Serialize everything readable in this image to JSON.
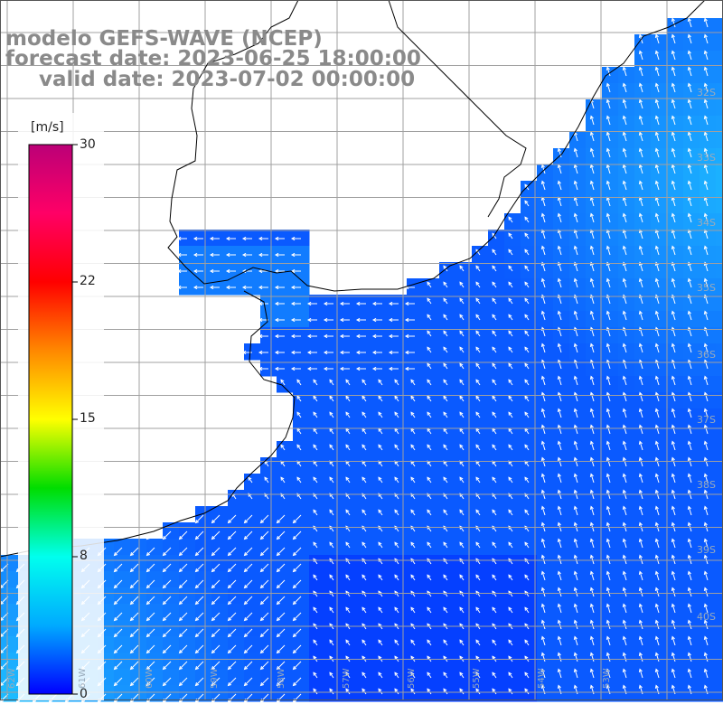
{
  "title": {
    "line1": "modelo GEFS-WAVE (NCEP)",
    "line2": "forecast date: 2023-06-25 18:00:00",
    "line3": "valid date: 2023-07-02 00:00:00"
  },
  "colorbar": {
    "unit": "[m/s]",
    "ticks": [
      "30",
      "22",
      "15",
      "8",
      "0"
    ],
    "stops": [
      "#0000ff",
      "#00aaff",
      "#00ffee",
      "#00dd00",
      "#ffff00",
      "#ff8800",
      "#ff0000",
      "#ff0066",
      "#bb0077"
    ]
  },
  "map": {
    "variable": "wind speed",
    "lat_labels": [
      "32S",
      "33S",
      "34S",
      "35S",
      "36S",
      "37S",
      "38S",
      "39S",
      "40S"
    ],
    "lon_labels": [
      "62W",
      "61W",
      "60W",
      "59W",
      "58W",
      "57W",
      "56W",
      "55W",
      "54W",
      "53W"
    ],
    "colors": {
      "land": "#ffffff",
      "coast": "#000000",
      "grid": "#a0a0a0",
      "arrow": "#ffffff",
      "title": "#8a8a8a"
    }
  }
}
